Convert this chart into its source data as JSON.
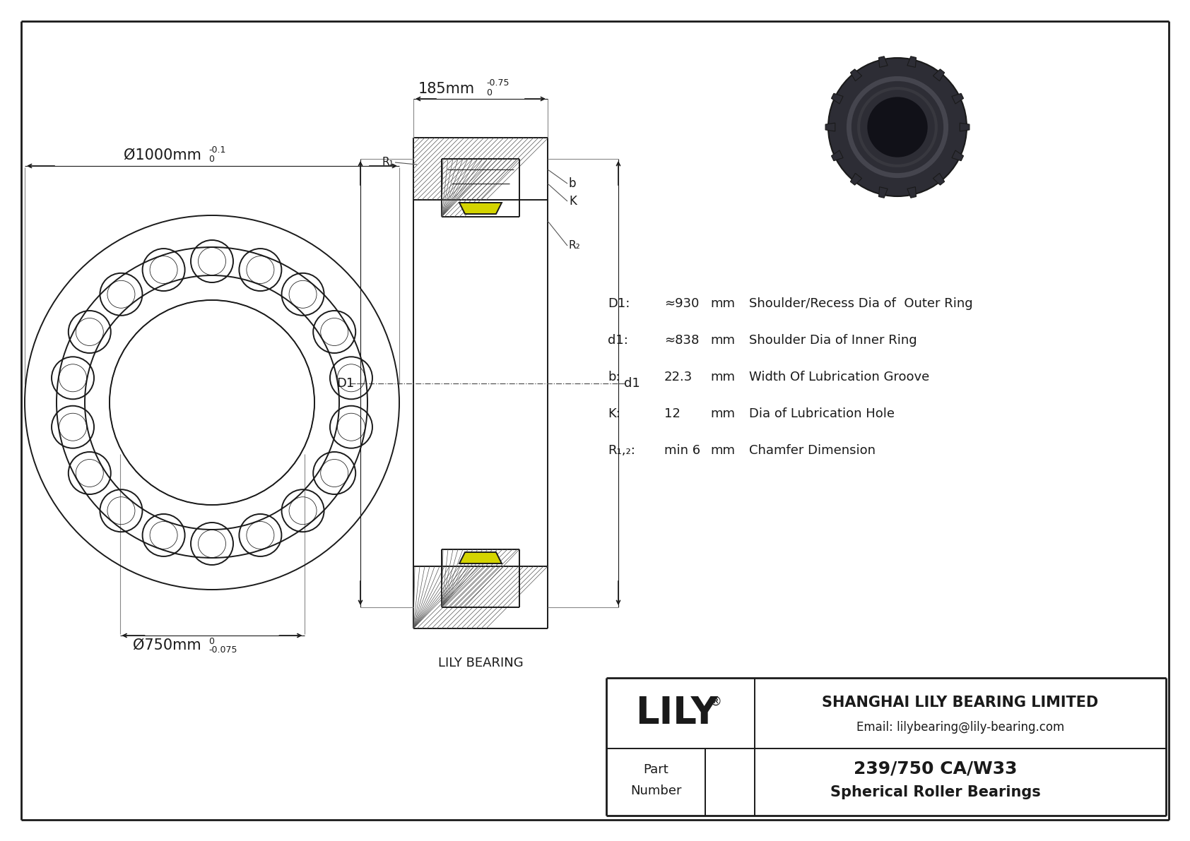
{
  "bg_color": "#ffffff",
  "line_color": "#1a1a1a",
  "outer_dia_label": "Ø1000mm",
  "outer_tol_top": "0",
  "outer_tol_bot": "-0.1",
  "inner_dia_label": "Ø750mm",
  "inner_tol_top": "0",
  "inner_tol_bot": "-0.075",
  "width_label": "185mm",
  "width_tol_top": "0",
  "width_tol_bot": "-0.75",
  "brand_label": "LILY BEARING",
  "b_label": "b",
  "k_label": "K",
  "r1_label": "R₁",
  "r2_label": "R₂",
  "D1_label": "D1",
  "d1_label": "d1",
  "specs": [
    {
      "param": "D1:",
      "value": "≈930",
      "unit": "mm",
      "desc": "Shoulder/Recess Dia of  Outer Ring"
    },
    {
      "param": "d1:",
      "value": "≈838",
      "unit": "mm",
      "desc": "Shoulder Dia of Inner Ring"
    },
    {
      "param": "b:",
      "value": "22.3",
      "unit": "mm",
      "desc": "Width Of Lubrication Groove"
    },
    {
      "param": "K:",
      "value": "12",
      "unit": "mm",
      "desc": "Dia of Lubrication Hole"
    },
    {
      "param": "R₁,₂:",
      "value": "min 6",
      "unit": "mm",
      "desc": "Chamfer Dimension"
    }
  ],
  "title": "LILY",
  "reg_mark": "®",
  "company": "SHANGHAI LILY BEARING LIMITED",
  "email": "Email: lilybearing@lily-bearing.com",
  "part_label_1": "Part",
  "part_label_2": "Number",
  "part_number": "239/750 CA/W33",
  "part_type": "Spherical Roller Bearings"
}
